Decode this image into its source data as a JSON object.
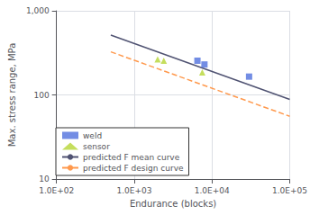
{
  "chart_data": {
    "type": "scatter",
    "log": true,
    "grid": true,
    "legend": "lower left",
    "xlabel": "Endurance (blocks)",
    "ylabel": "Max. stress range, MPa",
    "xlim": [
      100,
      100000
    ],
    "ylim": [
      10,
      1000
    ],
    "xticks": [
      {
        "value": 100,
        "label": "1.0E+02"
      },
      {
        "value": 1000,
        "label": "1.0E+03"
      },
      {
        "value": 10000,
        "label": "1.0E+04"
      },
      {
        "value": 100000,
        "label": "1.0E+05"
      }
    ],
    "yticks": [
      10,
      100,
      {
        "value": 1000,
        "label": "1,000"
      }
    ],
    "series": [
      {
        "name": "weld",
        "type": "scatter",
        "marker": "square",
        "x": [
          6500,
          8000,
          30000
        ],
        "values": [
          255,
          230,
          165
        ]
      },
      {
        "name": "sensor",
        "type": "scatter",
        "marker": "triangle",
        "x": [
          2000,
          2400,
          7500
        ],
        "values": [
          265,
          255,
          185
        ]
      },
      {
        "name": "predicted F mean curve",
        "type": "line",
        "line_style": "solid",
        "x": [
          500,
          100000
        ],
        "values": [
          515.22,
          88.26
        ]
      },
      {
        "name": "predicted F design curve",
        "type": "line",
        "line_style": "dashed",
        "x": [
          500,
          100000
        ],
        "values": [
          325.41,
          55.74
        ]
      }
    ]
  }
}
